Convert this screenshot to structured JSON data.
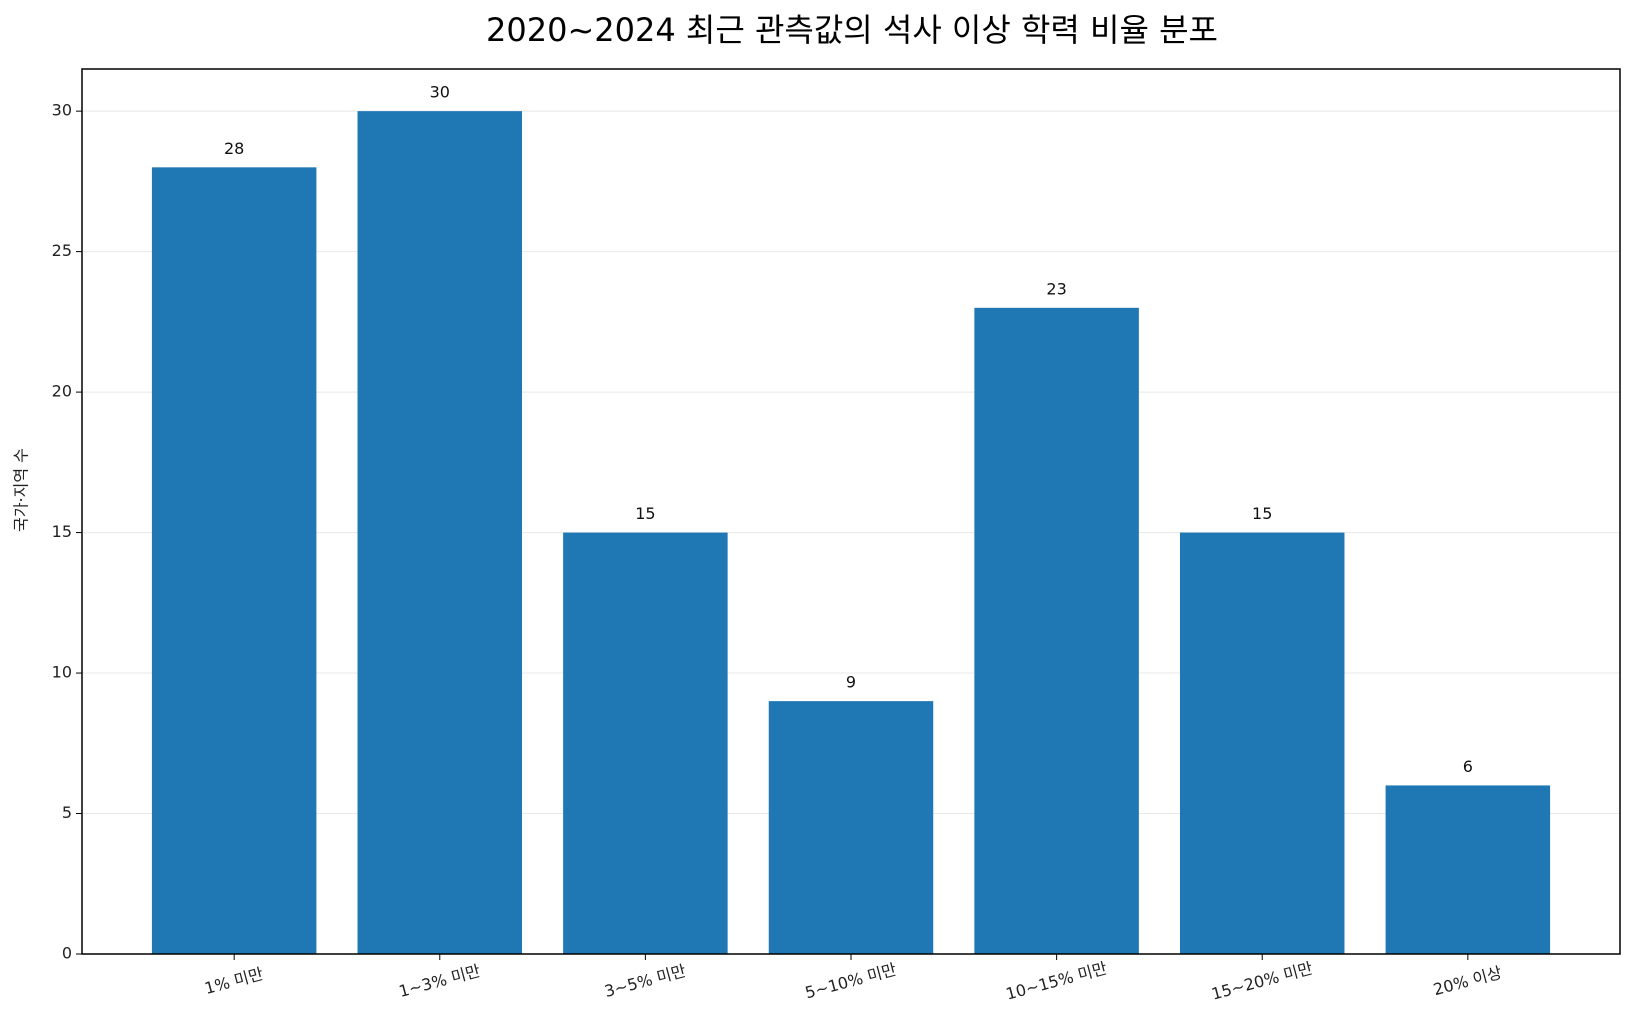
{
  "chart_data": {
    "type": "bar",
    "title": "2020~2024 최근 관측값의 석사 이상 학력 비율 분포",
    "y_label": "국가·지역 수",
    "categories": [
      "1% 미만",
      "1~3% 미만",
      "3~5% 미만",
      "5~10% 미만",
      "10~15% 미만",
      "15~20% 미만",
      "20% 이상"
    ],
    "values": [
      28,
      30,
      15,
      9,
      23,
      15,
      6
    ],
    "color": "#1f77b4",
    "ylim": [
      0,
      31.5
    ],
    "yticks": [
      0,
      5,
      10,
      15,
      20,
      25,
      30
    ],
    "grid": true
  }
}
